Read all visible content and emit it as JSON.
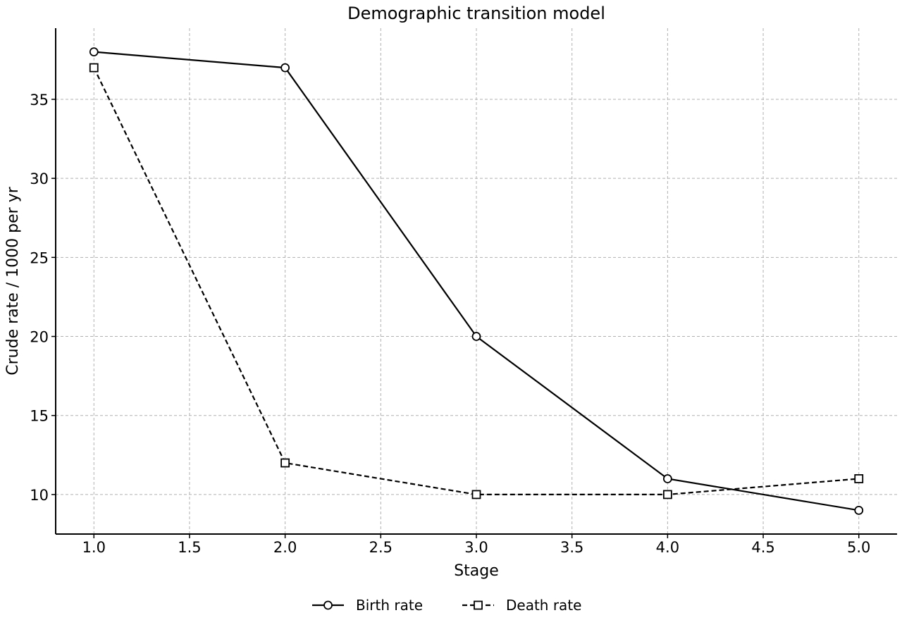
{
  "chart_data": {
    "type": "line",
    "title": "Demographic transition model",
    "xlabel": "Stage",
    "ylabel": "Crude rate / 1000 per yr",
    "xlim": [
      0.8,
      5.2
    ],
    "ylim": [
      7.5,
      39.5
    ],
    "xticks": [
      1.0,
      1.5,
      2.0,
      2.5,
      3.0,
      3.5,
      4.0,
      4.5,
      5.0
    ],
    "xtick_labels": [
      "1.0",
      "1.5",
      "2.0",
      "2.5",
      "3.0",
      "3.5",
      "4.0",
      "4.5",
      "5.0"
    ],
    "yticks": [
      10,
      15,
      20,
      25,
      30,
      35
    ],
    "ytick_labels": [
      "10",
      "15",
      "20",
      "25",
      "30",
      "35"
    ],
    "grid": true,
    "legend_position": "bottom-center",
    "x": [
      1,
      2,
      3,
      4,
      5
    ],
    "series": [
      {
        "name": "Birth rate",
        "values": [
          38,
          37,
          20,
          11,
          9
        ],
        "line_style": "solid",
        "marker": "circle",
        "color": "#000000"
      },
      {
        "name": "Death rate",
        "values": [
          37,
          12,
          10,
          10,
          11
        ],
        "line_style": "dashed",
        "marker": "square",
        "color": "#000000"
      }
    ]
  }
}
